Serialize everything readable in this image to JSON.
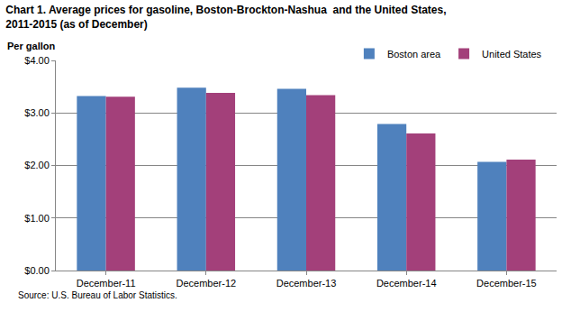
{
  "chart_data": {
    "type": "bar",
    "title": [
      "Chart 1. Average prices for gasoline, Boston-Brockton-Nashua  and the United States,",
      "2011-2015 (as of December)"
    ],
    "y_label": "Per gallon",
    "annotations": [
      "Source: U.S. Bureau of Labor Statistics."
    ],
    "categories": [
      "December-11",
      "December-12",
      "December-13",
      "December-14",
      "December-15"
    ],
    "series": [
      {
        "name": "Boston area",
        "color": "#4f81bd",
        "values": [
          3.32,
          3.48,
          3.46,
          2.79,
          2.07
        ]
      },
      {
        "name": "United States",
        "color": "#a3407a",
        "values": [
          3.31,
          3.38,
          3.34,
          2.61,
          2.11
        ]
      }
    ],
    "ylim": [
      0,
      4
    ],
    "yticks": [
      {
        "value": 0,
        "label": "$0.00"
      },
      {
        "value": 1,
        "label": "$1.00"
      },
      {
        "value": 2,
        "label": "$2.00"
      },
      {
        "value": 3,
        "label": "$3.00"
      },
      {
        "value": 4,
        "label": "$4.00"
      }
    ],
    "grid": true,
    "legend": "top right"
  }
}
